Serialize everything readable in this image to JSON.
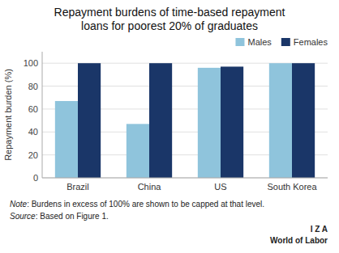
{
  "chart_data": {
    "type": "bar",
    "title": "Repayment burdens of time-based repayment",
    "subtitle": "loans for poorest 20% of graduates",
    "categories": [
      "Brazil",
      "China",
      "US",
      "South Korea"
    ],
    "series": [
      {
        "name": "Males",
        "color": "#8fc4dc",
        "values": [
          67,
          47,
          96,
          100
        ]
      },
      {
        "name": "Females",
        "color": "#1a3668",
        "values": [
          100,
          100,
          97,
          100
        ]
      }
    ],
    "y_label": "Repayment burden (%)",
    "ylim": [
      0,
      110
    ],
    "yticks": [
      0,
      20,
      40,
      60,
      80,
      100
    ],
    "grid": true,
    "legend": "top-right",
    "annotations": [
      "Note: Burdens in excess of 100% are shown to be capped at that level.",
      "Source: Based on Figure 1.",
      "I  Z  A",
      "World of Labor"
    ]
  }
}
